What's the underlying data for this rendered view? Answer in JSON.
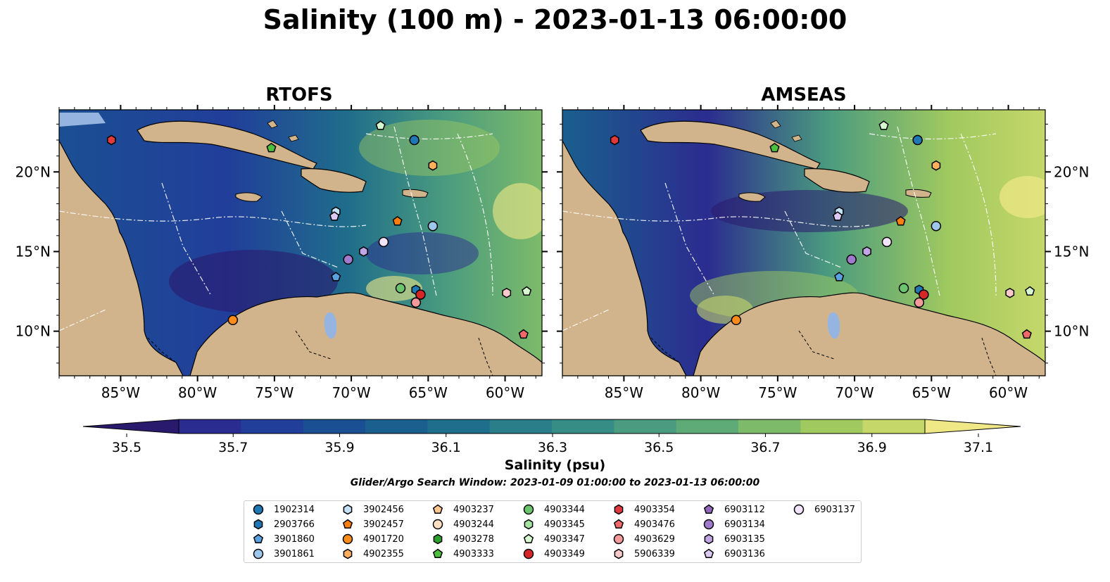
{
  "title": "Salinity (100 m) - 2023-01-13 06:00:00",
  "panels": [
    {
      "name": "RTOFS"
    },
    {
      "name": "AMSEAS"
    }
  ],
  "lon_ticks": [
    "85°W",
    "80°W",
    "75°W",
    "70°W",
    "65°W",
    "60°W"
  ],
  "lat_ticks": [
    "20°N",
    "15°N",
    "10°N"
  ],
  "colorbar": {
    "label": "Salinity (psu)",
    "ticks": [
      "35.5",
      "35.7",
      "35.9",
      "36.1",
      "36.3",
      "36.5",
      "36.7",
      "36.9",
      "37.1"
    ],
    "colors": [
      "#2a1a6e",
      "#2b2c8f",
      "#213e9a",
      "#1b4f93",
      "#1a5f8e",
      "#1f6e8b",
      "#2a7e8a",
      "#368d86",
      "#4a9b7f",
      "#5fab77",
      "#7dbb6a",
      "#a0c95f",
      "#c6d76a",
      "#f0e887"
    ]
  },
  "search_window": "Glider/Argo Search Window: 2023-01-09 01:00:00 to 2023-01-13 06:00:00",
  "colors": {
    "land": "#d2b48c",
    "shelf": "#96b4e0"
  },
  "legend": [
    {
      "id": "1902314",
      "color": "#1f77b4",
      "shape": "circle"
    },
    {
      "id": "2903766",
      "color": "#1f77b4",
      "shape": "hexagon"
    },
    {
      "id": "3901860",
      "color": "#5aa1e0",
      "shape": "pentagon"
    },
    {
      "id": "3901861",
      "color": "#9ec7ec",
      "shape": "circle"
    },
    {
      "id": "3902456",
      "color": "#c4e3f8",
      "shape": "hexagon"
    },
    {
      "id": "3902457",
      "color": "#ff7f0e",
      "shape": "pentagon"
    },
    {
      "id": "4901720",
      "color": "#ff8c1a",
      "shape": "circle"
    },
    {
      "id": "4902355",
      "color": "#ffae5c",
      "shape": "hexagon"
    },
    {
      "id": "4903237",
      "color": "#ffc890",
      "shape": "pentagon"
    },
    {
      "id": "4903244",
      "color": "#ffe0c0",
      "shape": "circle"
    },
    {
      "id": "4903278",
      "color": "#2ca02c",
      "shape": "hexagon"
    },
    {
      "id": "4903333",
      "color": "#4cbf3c",
      "shape": "pentagon"
    },
    {
      "id": "4903344",
      "color": "#6cc46c",
      "shape": "circle"
    },
    {
      "id": "4903345",
      "color": "#a6e3a0",
      "shape": "hexagon"
    },
    {
      "id": "4903347",
      "color": "#d6f7d0",
      "shape": "pentagon"
    },
    {
      "id": "4903349",
      "color": "#d62728",
      "shape": "circle"
    },
    {
      "id": "4903354",
      "color": "#e0393b",
      "shape": "hexagon"
    },
    {
      "id": "4903476",
      "color": "#f0696a",
      "shape": "pentagon"
    },
    {
      "id": "4903629",
      "color": "#f59a9a",
      "shape": "circle"
    },
    {
      "id": "5906339",
      "color": "#fac9c9",
      "shape": "hexagon"
    },
    {
      "id": "6903112",
      "color": "#9467bd",
      "shape": "pentagon"
    },
    {
      "id": "6903134",
      "color": "#a07acd",
      "shape": "circle"
    },
    {
      "id": "6903135",
      "color": "#c2a5e5",
      "shape": "hexagon"
    },
    {
      "id": "6903136",
      "color": "#dccaf4",
      "shape": "pentagon"
    },
    {
      "id": "6903137",
      "color": "#f1e4fb",
      "shape": "circle"
    }
  ],
  "floats": [
    {
      "id": "4903354",
      "lon": -85.6,
      "lat": 22.0
    },
    {
      "id": "4903333",
      "lon": -75.2,
      "lat": 21.5
    },
    {
      "id": "4903347",
      "lon": -68.1,
      "lat": 22.9
    },
    {
      "id": "1902314",
      "lon": -65.9,
      "lat": 22.0
    },
    {
      "id": "4902355",
      "lon": -64.7,
      "lat": 20.4
    },
    {
      "id": "3902456",
      "lon": -71.0,
      "lat": 17.5
    },
    {
      "id": "6903136",
      "lon": -71.1,
      "lat": 17.2
    },
    {
      "id": "3902457",
      "lon": -67.0,
      "lat": 16.9
    },
    {
      "id": "3901861",
      "lon": -64.7,
      "lat": 16.6
    },
    {
      "id": "6903137",
      "lon": -67.9,
      "lat": 15.6
    },
    {
      "id": "6903135",
      "lon": -69.2,
      "lat": 15.0
    },
    {
      "id": "6903134",
      "lon": -70.2,
      "lat": 14.5
    },
    {
      "id": "3901860",
      "lon": -71.0,
      "lat": 13.4
    },
    {
      "id": "4903344",
      "lon": -66.8,
      "lat": 12.7
    },
    {
      "id": "2903766",
      "lon": -65.8,
      "lat": 12.6
    },
    {
      "id": "4903349",
      "lon": -65.5,
      "lat": 12.3
    },
    {
      "id": "4903629",
      "lon": -65.8,
      "lat": 11.8
    },
    {
      "id": "5906339",
      "lon": -59.9,
      "lat": 12.4
    },
    {
      "id": "4903347b",
      "lon": -58.6,
      "lat": 12.5
    },
    {
      "id": "4903476",
      "lon": -58.8,
      "lat": 9.8
    },
    {
      "id": "4901720",
      "lon": -77.7,
      "lat": 10.7
    }
  ]
}
